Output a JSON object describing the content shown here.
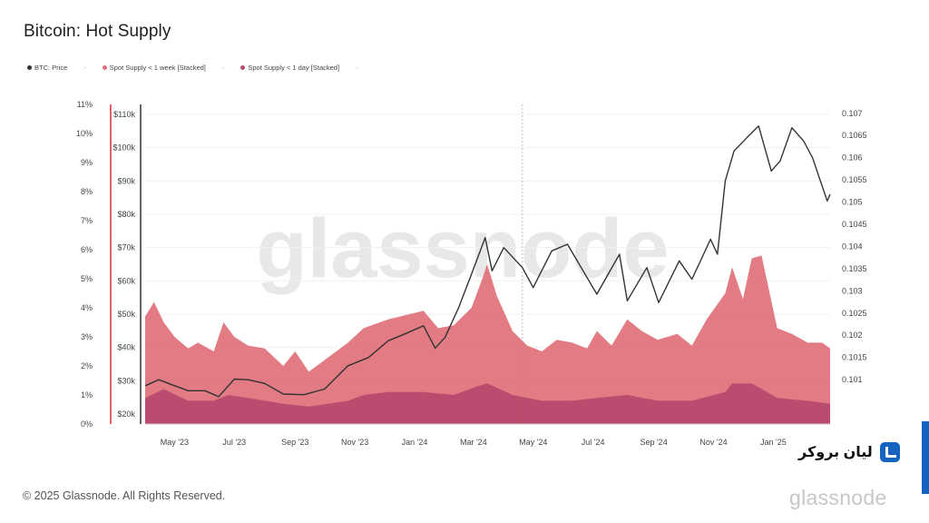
{
  "title": "Bitcoin: Hot Supply",
  "legend": [
    {
      "label": "BTC: Price",
      "color": "#333333"
    },
    {
      "label": "Spot Supply < 1 week [Stacked]",
      "color": "#e0707a"
    },
    {
      "label": "Spot Supply < 1 day [Stacked]",
      "color": "#b84a6e"
    }
  ],
  "legend_separator": "-",
  "watermark": "glassnode",
  "footer": {
    "copyright": "© 2025 Glassnode. All Rights Reserved.",
    "logo": "glassnode",
    "overlay_brand": "لیان بروکر"
  },
  "chart_data": {
    "type": "area",
    "title": "Bitcoin: Hot Supply",
    "x_range": [
      "2023-04-01",
      "2025-02-28"
    ],
    "x_ticks": [
      "May '23",
      "Jul '23",
      "Sep '23",
      "Nov '23",
      "Jan '24",
      "Mar '24",
      "May '24",
      "Jul '24",
      "Sep '24",
      "Nov '24",
      "Jan '25"
    ],
    "x_tick_dates": [
      "2023-05-01",
      "2023-07-01",
      "2023-09-01",
      "2023-11-01",
      "2024-01-01",
      "2024-03-01",
      "2024-05-01",
      "2024-07-01",
      "2024-09-01",
      "2024-11-01",
      "2025-01-01"
    ],
    "y_left_percent": {
      "range": [
        0,
        11
      ],
      "ticks": [
        "0%",
        "1%",
        "2%",
        "3%",
        "4%",
        "5%",
        "6%",
        "7%",
        "8%",
        "9%",
        "10%",
        "11%"
      ]
    },
    "y_left_price": {
      "range": [
        17000,
        113000
      ],
      "ticks": [
        "$20k",
        "$30k",
        "$40k",
        "$50k",
        "$60k",
        "$70k",
        "$80k",
        "$90k",
        "$100k",
        "$110k"
      ],
      "tick_values": [
        20000,
        30000,
        40000,
        50000,
        60000,
        70000,
        80000,
        90000,
        100000,
        110000
      ]
    },
    "y_right": {
      "range": [
        0.1,
        0.1072
      ],
      "ticks": [
        "0.101",
        "0.1015",
        "0.102",
        "0.1025",
        "0.103",
        "0.1035",
        "0.104",
        "0.1045",
        "0.105",
        "0.1055",
        "0.106",
        "0.1065",
        "0.107"
      ],
      "tick_values": [
        0.101,
        0.1015,
        0.102,
        0.1025,
        0.103,
        0.1035,
        0.104,
        0.1045,
        0.105,
        0.1055,
        0.106,
        0.1065,
        0.107
      ]
    },
    "series": [
      {
        "name": "BTC: Price",
        "type": "line",
        "color": "#333333",
        "axis": "price",
        "points": [
          [
            "2023-04-01",
            28500
          ],
          [
            "2023-04-15",
            30300
          ],
          [
            "2023-05-01",
            28500
          ],
          [
            "2023-05-15",
            27000
          ],
          [
            "2023-06-01",
            27000
          ],
          [
            "2023-06-15",
            25200
          ],
          [
            "2023-07-01",
            30500
          ],
          [
            "2023-07-15",
            30300
          ],
          [
            "2023-08-01",
            29200
          ],
          [
            "2023-08-20",
            26000
          ],
          [
            "2023-09-10",
            25800
          ],
          [
            "2023-10-01",
            27500
          ],
          [
            "2023-10-25",
            34500
          ],
          [
            "2023-11-15",
            37000
          ],
          [
            "2023-12-05",
            42000
          ],
          [
            "2023-12-20",
            43800
          ],
          [
            "2024-01-10",
            46500
          ],
          [
            "2024-01-22",
            39800
          ],
          [
            "2024-02-01",
            43000
          ],
          [
            "2024-02-15",
            52000
          ],
          [
            "2024-02-28",
            62000
          ],
          [
            "2024-03-13",
            73000
          ],
          [
            "2024-03-20",
            63000
          ],
          [
            "2024-04-01",
            70000
          ],
          [
            "2024-04-20",
            64000
          ],
          [
            "2024-05-01",
            58000
          ],
          [
            "2024-05-20",
            69000
          ],
          [
            "2024-06-05",
            71000
          ],
          [
            "2024-06-25",
            61000
          ],
          [
            "2024-07-05",
            56000
          ],
          [
            "2024-07-28",
            68000
          ],
          [
            "2024-08-05",
            54000
          ],
          [
            "2024-08-25",
            64000
          ],
          [
            "2024-09-06",
            53500
          ],
          [
            "2024-09-27",
            66000
          ],
          [
            "2024-10-10",
            60500
          ],
          [
            "2024-10-29",
            72500
          ],
          [
            "2024-11-05",
            68000
          ],
          [
            "2024-11-13",
            90000
          ],
          [
            "2024-11-22",
            99000
          ],
          [
            "2024-12-05",
            103000
          ],
          [
            "2024-12-17",
            106500
          ],
          [
            "2024-12-30",
            93000
          ],
          [
            "2025-01-08",
            96000
          ],
          [
            "2025-01-20",
            106000
          ],
          [
            "2025-02-01",
            102000
          ],
          [
            "2025-02-10",
            97000
          ],
          [
            "2025-02-25",
            84000
          ],
          [
            "2025-02-28",
            86000
          ]
        ]
      },
      {
        "name": "Spot Supply < 1 week [Stacked]",
        "type": "area",
        "color": "#e0707a",
        "axis": "percent",
        "points": [
          [
            "2023-04-01",
            3.7
          ],
          [
            "2023-04-10",
            4.2
          ],
          [
            "2023-04-20",
            3.5
          ],
          [
            "2023-05-01",
            3.0
          ],
          [
            "2023-05-15",
            2.6
          ],
          [
            "2023-05-25",
            2.8
          ],
          [
            "2023-06-10",
            2.5
          ],
          [
            "2023-06-20",
            3.5
          ],
          [
            "2023-07-01",
            3.0
          ],
          [
            "2023-07-15",
            2.7
          ],
          [
            "2023-08-01",
            2.6
          ],
          [
            "2023-08-20",
            2.0
          ],
          [
            "2023-09-01",
            2.5
          ],
          [
            "2023-09-15",
            1.8
          ],
          [
            "2023-10-01",
            2.2
          ],
          [
            "2023-10-25",
            2.8
          ],
          [
            "2023-11-10",
            3.3
          ],
          [
            "2023-12-05",
            3.6
          ],
          [
            "2024-01-10",
            3.9
          ],
          [
            "2024-01-25",
            3.3
          ],
          [
            "2024-02-10",
            3.4
          ],
          [
            "2024-02-28",
            4.0
          ],
          [
            "2024-03-10",
            5.0
          ],
          [
            "2024-03-15",
            5.5
          ],
          [
            "2024-03-25",
            4.4
          ],
          [
            "2024-04-10",
            3.2
          ],
          [
            "2024-04-25",
            2.7
          ],
          [
            "2024-05-10",
            2.5
          ],
          [
            "2024-05-25",
            2.9
          ],
          [
            "2024-06-10",
            2.8
          ],
          [
            "2024-06-25",
            2.6
          ],
          [
            "2024-07-05",
            3.2
          ],
          [
            "2024-07-20",
            2.7
          ],
          [
            "2024-08-05",
            3.6
          ],
          [
            "2024-08-20",
            3.2
          ],
          [
            "2024-09-05",
            2.9
          ],
          [
            "2024-09-25",
            3.1
          ],
          [
            "2024-10-10",
            2.7
          ],
          [
            "2024-10-25",
            3.6
          ],
          [
            "2024-11-13",
            4.5
          ],
          [
            "2024-11-20",
            5.4
          ],
          [
            "2024-12-01",
            4.3
          ],
          [
            "2024-12-10",
            5.7
          ],
          [
            "2024-12-20",
            5.8
          ],
          [
            "2025-01-05",
            3.3
          ],
          [
            "2025-01-20",
            3.1
          ],
          [
            "2025-02-05",
            2.8
          ],
          [
            "2025-02-20",
            2.8
          ],
          [
            "2025-02-28",
            2.6
          ]
        ]
      },
      {
        "name": "Spot Supply < 1 day [Stacked]",
        "type": "area",
        "color": "#b84a6e",
        "axis": "percent",
        "points": [
          [
            "2023-04-01",
            0.9
          ],
          [
            "2023-04-20",
            1.2
          ],
          [
            "2023-05-15",
            0.8
          ],
          [
            "2023-06-10",
            0.8
          ],
          [
            "2023-06-25",
            1.0
          ],
          [
            "2023-07-15",
            0.9
          ],
          [
            "2023-08-20",
            0.7
          ],
          [
            "2023-09-15",
            0.6
          ],
          [
            "2023-10-25",
            0.8
          ],
          [
            "2023-11-10",
            1.0
          ],
          [
            "2023-12-05",
            1.1
          ],
          [
            "2024-01-10",
            1.1
          ],
          [
            "2024-02-10",
            1.0
          ],
          [
            "2024-03-05",
            1.3
          ],
          [
            "2024-03-15",
            1.4
          ],
          [
            "2024-04-10",
            1.0
          ],
          [
            "2024-05-10",
            0.8
          ],
          [
            "2024-06-10",
            0.8
          ],
          [
            "2024-07-05",
            0.9
          ],
          [
            "2024-08-05",
            1.0
          ],
          [
            "2024-09-05",
            0.8
          ],
          [
            "2024-10-10",
            0.8
          ],
          [
            "2024-11-13",
            1.1
          ],
          [
            "2024-11-20",
            1.4
          ],
          [
            "2024-12-10",
            1.4
          ],
          [
            "2025-01-05",
            0.9
          ],
          [
            "2025-02-05",
            0.8
          ],
          [
            "2025-02-28",
            0.7
          ]
        ]
      }
    ],
    "grid": true,
    "legend_position": "top-left"
  }
}
